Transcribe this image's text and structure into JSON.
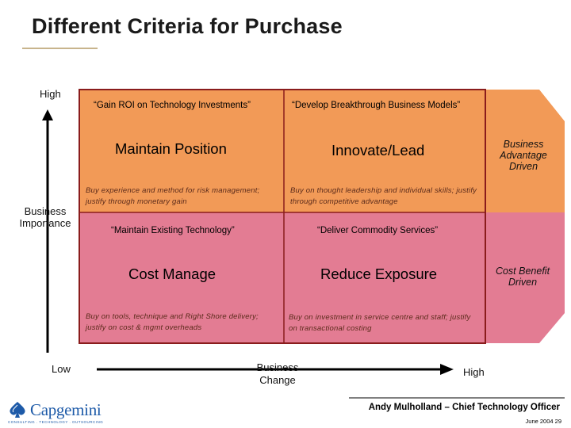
{
  "title": "Different Criteria for Purchase",
  "colors": {
    "orange": "#f29a57",
    "pink": "#e37c93",
    "border": "#8a1c1c",
    "logo_blue": "#1d5aa8"
  },
  "vertical_axis": {
    "high": "High",
    "label": "Business Importance",
    "low": "Low"
  },
  "horizontal_axis": {
    "label": "Business Change",
    "high": "High"
  },
  "quadrants": {
    "top_left": {
      "quote": "“Gain ROI on Technology Investments”",
      "title": "Maintain Position",
      "note": "Buy experience and method for risk management; justify through monetary gain"
    },
    "top_right": {
      "quote": "“Develop Breakthrough Business Models”",
      "title": "Innovate/Lead",
      "note": "Buy on thought leadership and individual skills; justify through competitive advantage"
    },
    "bottom_left": {
      "quote": "“Maintain Existing Technology”",
      "title": "Cost Manage",
      "note": "Buy on tools, technique and Right Shore delivery; justify on cost & mgmt overheads"
    },
    "bottom_right": {
      "quote": "“Deliver Commodity Services”",
      "title": "Reduce Exposure",
      "note": "Buy on investment in service centre and staff; justify on transactional costing"
    }
  },
  "side_labels": {
    "top": "Business Advantage Driven",
    "bottom": "Cost Benefit Driven"
  },
  "footer": {
    "author": "Andy Mulholland – Chief Technology Officer",
    "date_page": "June 2004  29",
    "logo": "Capgemini",
    "logo_tagline": "CONSULTING . TECHNOLOGY . OUTSOURCING"
  }
}
